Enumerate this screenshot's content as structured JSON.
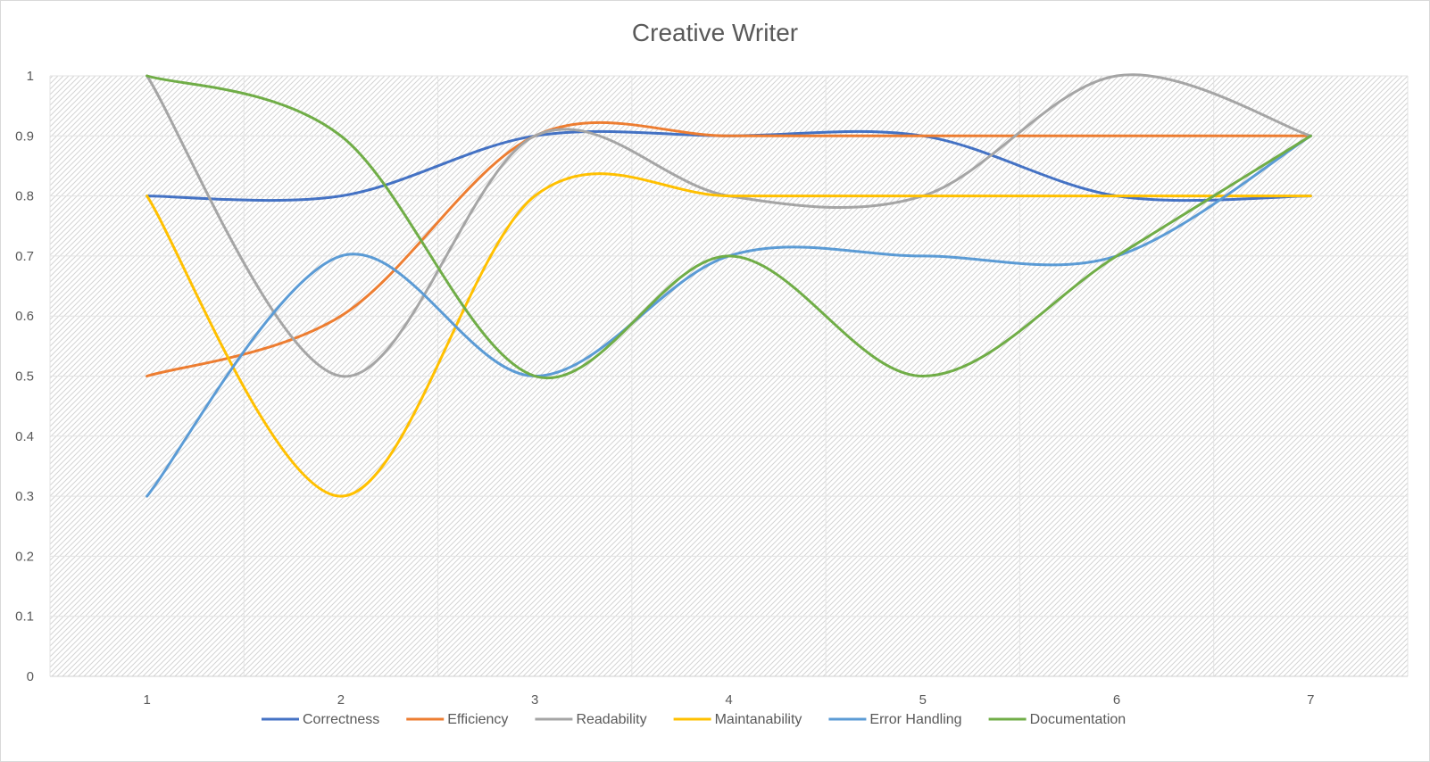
{
  "chart_data": {
    "type": "line",
    "smooth": true,
    "title": "Creative Writer",
    "xlabel": "",
    "ylabel": "",
    "categories": [
      "1",
      "2",
      "3",
      "4",
      "5",
      "6",
      "7"
    ],
    "ylim": [
      0,
      1
    ],
    "yticks": [
      "0",
      "0.1",
      "0.2",
      "0.3",
      "0.4",
      "0.5",
      "0.6",
      "0.7",
      "0.8",
      "0.9",
      "1"
    ],
    "grid": true,
    "legend_position": "bottom",
    "series": [
      {
        "name": "Correctness",
        "color": "#4472C4",
        "values": [
          0.8,
          0.8,
          0.9,
          0.9,
          0.9,
          0.8,
          0.8
        ]
      },
      {
        "name": "Efficiency",
        "color": "#ED7D31",
        "values": [
          0.5,
          0.6,
          0.9,
          0.9,
          0.9,
          0.9,
          0.9
        ]
      },
      {
        "name": "Readability",
        "color": "#A5A5A5",
        "values": [
          1.0,
          0.5,
          0.9,
          0.8,
          0.8,
          1.0,
          0.9
        ]
      },
      {
        "name": "Maintanability",
        "color": "#FFC000",
        "values": [
          0.8,
          0.3,
          0.8,
          0.8,
          0.8,
          0.8,
          0.8
        ]
      },
      {
        "name": "Error Handling",
        "color": "#5B9BD5",
        "values": [
          0.3,
          0.7,
          0.5,
          0.7,
          0.7,
          0.7,
          0.9
        ]
      },
      {
        "name": "Documentation",
        "color": "#70AD47",
        "values": [
          1.0,
          0.9,
          0.5,
          0.7,
          0.5,
          0.7,
          0.9
        ]
      }
    ]
  }
}
